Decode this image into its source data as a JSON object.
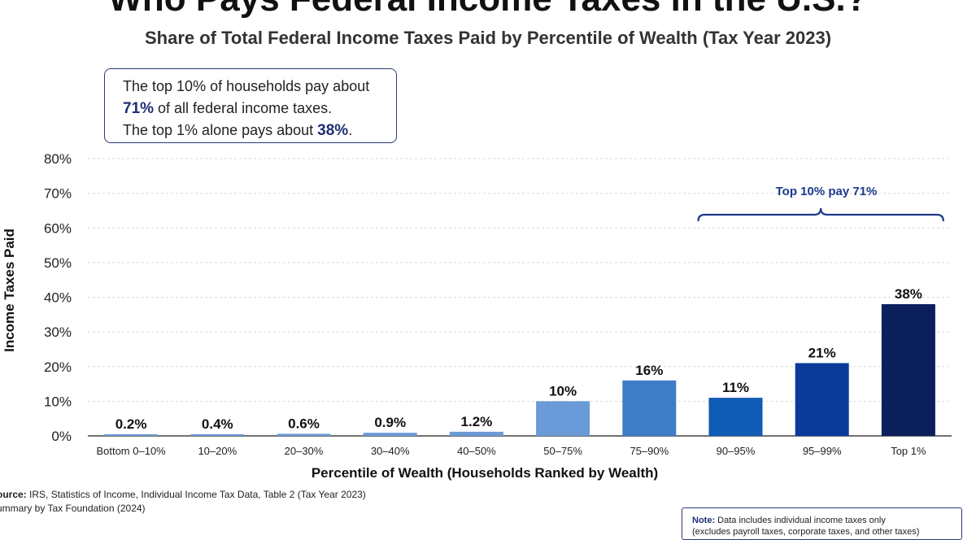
{
  "chart_data": {
    "type": "bar",
    "title": "Who Pays Federal Income Taxes in the U.S.?",
    "subtitle": "Share of Total Federal Income Taxes Paid by Percentile of Wealth (Tax Year 2023)",
    "xlabel": "Percentile of Wealth (Households Ranked by Wealth)",
    "ylabel": "Income Taxes Paid",
    "ylim": [
      0,
      80
    ],
    "yticks": [
      "0%",
      "10%",
      "20%",
      "30%",
      "40%",
      "50%",
      "60%",
      "70%",
      "80%"
    ],
    "grid": true,
    "categories": [
      "Bottom 0–10%",
      "10–20%",
      "20–30%",
      "30–40%",
      "40–50%",
      "50–75%",
      "75–90%",
      "90–95%",
      "95–99%",
      "Top 1%"
    ],
    "values": [
      0.2,
      0.4,
      0.6,
      0.9,
      1.2,
      10,
      16,
      11,
      21,
      38
    ],
    "data_labels": [
      "0.2%",
      "0.4%",
      "0.6%",
      "0.9%",
      "1.2%",
      "10%",
      "16%",
      "11%",
      "21%",
      "38%"
    ],
    "colors": [
      "#6a9bd8",
      "#6a9bd8",
      "#6a9bd8",
      "#6a9bd8",
      "#6a9bd8",
      "#6a9bd8",
      "#3f7cc8",
      "#0f5bb5",
      "#0a3b9a",
      "#0b1f5c"
    ],
    "annotations": [
      {
        "text": "Top 10% pay 71%",
        "spans": [
          "90–95%",
          "95–99%",
          "Top 1%"
        ]
      }
    ]
  },
  "callout": {
    "line1": "The top 10% of households pay about",
    "line2_value": "71%",
    "line2_rest": " of all federal income taxes.",
    "line3_pre": "The top 1% alone pays about ",
    "line3_value": "38%",
    "line3_post": "."
  },
  "source": {
    "line1_label": "ource:",
    "line1_text": " IRS, Statistics of Income, Individual Income Tax Data, Table 2 (Tax Year 2023)",
    "line2_text": "ummary by Tax Foundation (2024)"
  },
  "note": {
    "label": "Note:",
    "text": " Data includes individual income taxes only",
    "text2": "(excludes payroll taxes, corporate taxes, and other taxes)"
  }
}
